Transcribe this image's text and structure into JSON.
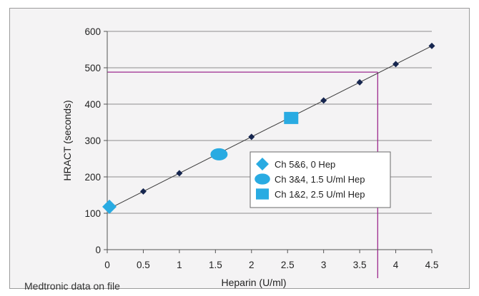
{
  "chart_data": {
    "type": "scatter",
    "title": "",
    "xlabel": "Heparin (U/ml)",
    "ylabel": "HRACT (seconds)",
    "xlim": [
      0,
      4.5
    ],
    "ylim": [
      0,
      600
    ],
    "x_ticks": [
      "0",
      "0.5",
      "1",
      "1.5",
      "2",
      "2.5",
      "3",
      "3.5",
      "4",
      "4.5"
    ],
    "y_ticks": [
      "0",
      "100",
      "200",
      "300",
      "400",
      "500",
      "600"
    ],
    "grid": "horizontal",
    "legend_position": "lower-right inside plot",
    "regression_line": {
      "x": [
        0,
        4.5
      ],
      "y": [
        110,
        560
      ]
    },
    "calibration_points": {
      "x": [
        0.5,
        1,
        2,
        3,
        3.5,
        4,
        4.5
      ],
      "y": [
        160,
        210,
        310,
        410,
        460,
        510,
        560
      ]
    },
    "series": [
      {
        "name": "Ch 5&6, 0 Hep",
        "marker": "diamond",
        "color": "#29abe2",
        "x": [
          0.03
        ],
        "y": [
          118
        ]
      },
      {
        "name": "Ch 3&4, 1.5 U/ml Hep",
        "marker": "ellipse",
        "color": "#29abe2",
        "x": [
          1.55
        ],
        "y": [
          262
        ]
      },
      {
        "name": "Ch 1&2, 2.5 U/ml Hep",
        "marker": "square",
        "color": "#29abe2",
        "x": [
          2.55
        ],
        "y": [
          362
        ]
      }
    ],
    "reference_lines": {
      "color": "#9c2a8e",
      "y": 488,
      "x": 3.75
    }
  },
  "footnote": "Medtronic data on file"
}
